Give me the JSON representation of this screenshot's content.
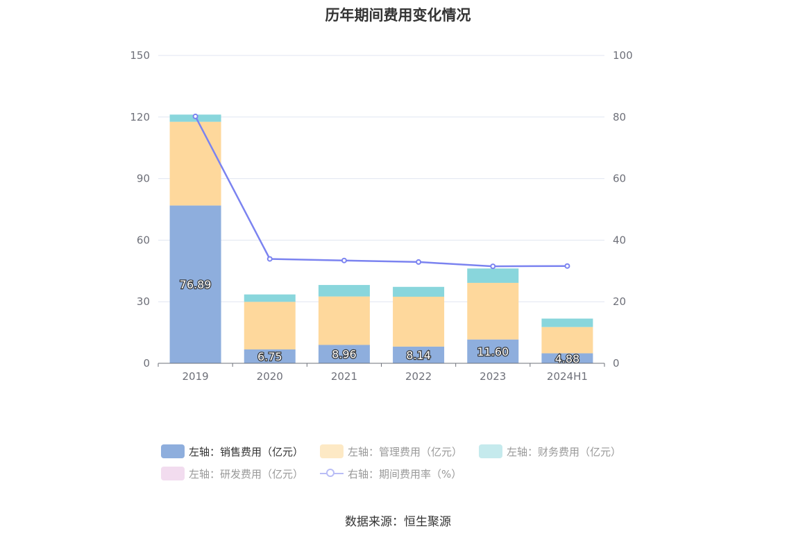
{
  "chart_data": {
    "type": "bar",
    "title": "历年期间费用变化情况",
    "categories": [
      "2019",
      "2020",
      "2021",
      "2022",
      "2023",
      "2024H1"
    ],
    "y_left": {
      "lim": [
        0,
        150
      ],
      "ticks": [
        "0",
        "30",
        "60",
        "90",
        "120",
        "150"
      ]
    },
    "y_right": {
      "lim": [
        0,
        100
      ],
      "ticks": [
        "0",
        "20",
        "40",
        "60",
        "80",
        "100"
      ]
    },
    "grid": true,
    "legend_position": "bottom",
    "series": [
      {
        "name": "左轴：销售费用（亿元）",
        "axis": "left",
        "stack": true,
        "color": "#8eaedd",
        "values": [
          76.89,
          6.75,
          8.96,
          8.14,
          11.6,
          4.88
        ],
        "labels": [
          "76.89",
          "6.75",
          "8.96",
          "8.14",
          "11.60",
          "4.88"
        ]
      },
      {
        "name": "左轴：管理费用（亿元）",
        "axis": "left",
        "stack": true,
        "color": "#fed89c",
        "values": [
          40.8,
          23.2,
          23.6,
          24.3,
          27.6,
          12.8
        ]
      },
      {
        "name": "左轴：财务费用（亿元）",
        "axis": "left",
        "stack": true,
        "color": "#89d6dc",
        "values": [
          3.5,
          3.6,
          5.6,
          4.8,
          7.0,
          4.1
        ]
      },
      {
        "name": "左轴：研发费用（亿元）",
        "axis": "left",
        "stack": true,
        "color": "#f5d5ec",
        "values": [
          0,
          0,
          0,
          0,
          0,
          0
        ]
      },
      {
        "name": "右轴：期间费用率（%）",
        "axis": "right",
        "type": "line",
        "color": "#7b83f0",
        "values": [
          80.2,
          33.9,
          33.4,
          32.9,
          31.5,
          31.6
        ]
      }
    ],
    "legend_label_colors": [
      "#333333",
      "#999999",
      "#999999",
      "#999999",
      "#999999"
    ]
  },
  "source_note": "数据来源：恒生聚源"
}
